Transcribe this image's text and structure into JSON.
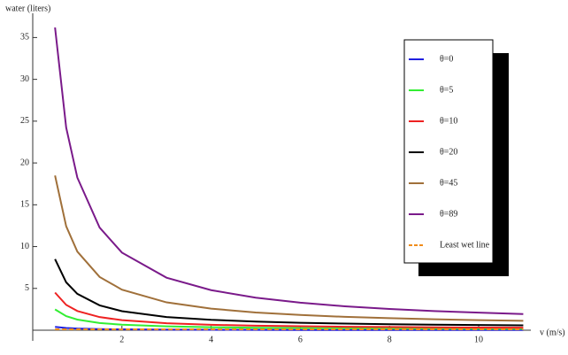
{
  "chart_data": {
    "type": "line",
    "y_label": "water (liters)",
    "x_label": "v (m/s)",
    "x": [
      0.5,
      0.75,
      1,
      1.5,
      2,
      3,
      4,
      5,
      6,
      7,
      8,
      9,
      10,
      11
    ],
    "series": [
      {
        "name": "θ=0",
        "color": "#1f1fe0",
        "values": [
          0.4,
          0.27,
          0.2,
          0.13,
          0.1,
          0.07,
          0.05,
          0.04,
          0.03,
          0.03,
          0.03,
          0.02,
          0.02,
          0.02
        ]
      },
      {
        "name": "θ=5",
        "color": "#33ee33",
        "values": [
          2.49,
          1.68,
          1.27,
          0.86,
          0.66,
          0.46,
          0.36,
          0.29,
          0.25,
          0.22,
          0.2,
          0.19,
          0.17,
          0.16
        ]
      },
      {
        "name": "θ=10",
        "color": "#ee2222",
        "values": [
          4.5,
          3.03,
          2.3,
          1.57,
          1.2,
          0.83,
          0.65,
          0.54,
          0.47,
          0.41,
          0.38,
          0.34,
          0.32,
          0.3
        ]
      },
      {
        "name": "θ=20",
        "color": "#000000",
        "values": [
          8.5,
          5.73,
          4.35,
          2.97,
          2.28,
          1.58,
          1.24,
          1.03,
          0.89,
          0.79,
          0.72,
          0.66,
          0.62,
          0.58
        ]
      },
      {
        "name": "θ=45",
        "color": "#a0703a",
        "values": [
          18.5,
          12.43,
          9.4,
          6.37,
          4.85,
          3.33,
          2.58,
          2.12,
          1.82,
          1.6,
          1.44,
          1.31,
          1.21,
          1.13
        ]
      },
      {
        "name": "θ=89",
        "color": "#7a1a8a",
        "values": [
          36.2,
          24.23,
          18.25,
          12.27,
          9.28,
          6.28,
          4.79,
          3.89,
          3.29,
          2.86,
          2.54,
          2.29,
          2.1,
          1.93
        ]
      },
      {
        "name": "Least wet line",
        "color": "#f08c1a",
        "dashed": true,
        "values": [
          0.1,
          0.1,
          0.1,
          0.1,
          0.1,
          0.1,
          0.1,
          0.1,
          0.1,
          0.1,
          0.1,
          0.1,
          0.1,
          0.1
        ]
      }
    ],
    "xlim": [
      0,
      11.17
    ],
    "ylim": [
      -1.27,
      37.9
    ],
    "xticks": [
      2,
      4,
      6,
      8,
      10
    ],
    "yticks": [
      5,
      10,
      15,
      20,
      25,
      30,
      35
    ],
    "legend": "top-right"
  }
}
